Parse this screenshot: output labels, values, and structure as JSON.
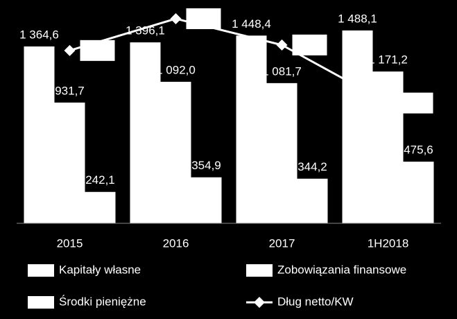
{
  "chart_data": {
    "type": "bar_line",
    "categories": [
      "2015",
      "2016",
      "2017",
      "1H2018"
    ],
    "series": [
      {
        "name": "Kapitały własne",
        "color": "#ffffff",
        "values": [
          1364.6,
          1396.1,
          1448.4,
          1488.1
        ],
        "value_labels": [
          "1 364,6",
          "1 396,1",
          "1 448,4",
          "1 488,1"
        ]
      },
      {
        "name": "Zobowiązania finansowe",
        "color": "#ffffff",
        "values": [
          931.7,
          1092.0,
          1081.7,
          1171.2
        ],
        "value_labels": [
          "931,7",
          "1 092,0",
          "1 081,7",
          "1 171,2"
        ]
      },
      {
        "name": "Środki pieniężne",
        "color": "#ffffff",
        "values": [
          242.1,
          354.9,
          344.2,
          475.6
        ],
        "value_labels": [
          "242,1",
          "354,9",
          "344,2",
          "475,6"
        ]
      },
      {
        "name": "Dług netto/KW",
        "color": "#ffffff",
        "type": "line",
        "axis": "y2",
        "values": [
          0.505,
          0.528,
          0.509,
          0.467
        ]
      }
    ],
    "ylim": [
      0,
      1600
    ],
    "y2lim": [
      0.38,
      0.53
    ]
  }
}
